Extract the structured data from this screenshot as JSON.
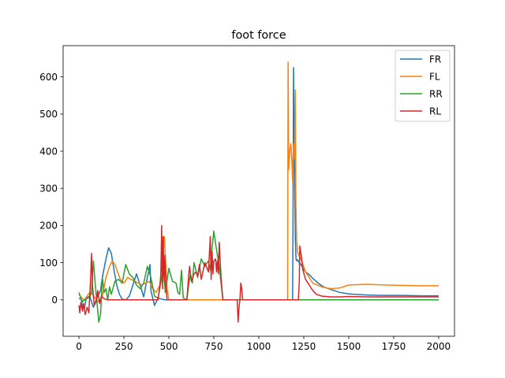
{
  "chart_data": {
    "type": "line",
    "title": "foot force",
    "xlabel": "",
    "ylabel": "",
    "xlim": [
      -88,
      2088
    ],
    "ylim": [
      -98,
      684
    ],
    "x_ticks": [
      0,
      250,
      500,
      750,
      1000,
      1250,
      1500,
      1750,
      2000
    ],
    "y_ticks": [
      0,
      100,
      200,
      300,
      400,
      500,
      600
    ],
    "legend_position": "top-right",
    "series": [
      {
        "name": "FR",
        "color": "#1f77b4",
        "x": [
          0,
          10,
          20,
          30,
          40,
          60,
          70,
          80,
          100,
          120,
          130,
          150,
          165,
          180,
          195,
          210,
          225,
          240,
          260,
          280,
          300,
          320,
          340,
          360,
          380,
          395,
          400,
          410,
          420,
          440,
          460,
          480,
          1100,
          1188,
          1190,
          1193,
          1196,
          1200,
          1203,
          1207,
          1210,
          1215,
          1225,
          1235,
          1245,
          1260,
          1280,
          1300,
          1330,
          1360,
          1400,
          1450,
          1500,
          1600,
          1700,
          1800,
          1900,
          2000
        ],
        "values": [
          2,
          6,
          -18,
          -25,
          5,
          10,
          -5,
          -20,
          5,
          25,
          60,
          110,
          140,
          125,
          80,
          40,
          15,
          2,
          0,
          10,
          40,
          70,
          40,
          8,
          60,
          95,
          25,
          5,
          -15,
          5,
          2,
          0,
          0,
          0,
          200,
          625,
          450,
          290,
          160,
          110,
          105,
          108,
          100,
          95,
          85,
          75,
          68,
          58,
          45,
          35,
          28,
          20,
          16,
          13,
          12,
          12,
          11,
          11
        ]
      },
      {
        "name": "FL",
        "color": "#ff7f0e",
        "x": [
          0,
          15,
          30,
          45,
          60,
          75,
          90,
          110,
          130,
          150,
          170,
          185,
          200,
          215,
          230,
          250,
          270,
          290,
          310,
          330,
          350,
          370,
          390,
          410,
          430,
          450,
          460,
          465,
          470,
          475,
          480,
          490,
          500,
          520,
          1160,
          1163,
          1166,
          1172,
          1178,
          1183,
          1188,
          1193,
          1198,
          1203,
          1206,
          1210,
          1215,
          1222,
          1235,
          1260,
          1300,
          1350,
          1400,
          1450,
          1500,
          1600,
          1700,
          1800,
          1900,
          2000
        ],
        "values": [
          15,
          5,
          0,
          10,
          20,
          15,
          5,
          -5,
          10,
          60,
          90,
          105,
          95,
          75,
          55,
          45,
          60,
          55,
          50,
          45,
          40,
          45,
          50,
          30,
          20,
          40,
          100,
          60,
          150,
          170,
          120,
          30,
          0,
          0,
          0,
          640,
          350,
          400,
          420,
          380,
          320,
          420,
          380,
          565,
          260,
          160,
          130,
          120,
          110,
          75,
          45,
          35,
          30,
          32,
          40,
          42,
          40,
          39,
          38,
          38
        ]
      },
      {
        "name": "RR",
        "color": "#2ca02c",
        "x": [
          0,
          10,
          20,
          30,
          40,
          50,
          60,
          70,
          80,
          90,
          100,
          110,
          120,
          130,
          140,
          150,
          160,
          170,
          180,
          200,
          220,
          240,
          260,
          280,
          300,
          320,
          340,
          360,
          380,
          400,
          420,
          440,
          460,
          470,
          480,
          500,
          520,
          540,
          550,
          560,
          570,
          580,
          600,
          610,
          620,
          630,
          640,
          660,
          680,
          700,
          720,
          730,
          740,
          750,
          760,
          780,
          800,
          1000,
          2000
        ],
        "values": [
          20,
          5,
          -5,
          0,
          2,
          5,
          8,
          20,
          105,
          45,
          -5,
          -60,
          -40,
          60,
          20,
          30,
          0,
          35,
          15,
          50,
          55,
          45,
          95,
          70,
          60,
          40,
          30,
          45,
          90,
          60,
          10,
          5,
          60,
          90,
          20,
          85,
          50,
          45,
          20,
          15,
          80,
          5,
          0,
          40,
          70,
          45,
          100,
          60,
          110,
          90,
          105,
          80,
          140,
          185,
          150,
          90,
          0,
          0,
          0
        ]
      },
      {
        "name": "RL",
        "color": "#d62728",
        "x": [
          0,
          5,
          10,
          20,
          25,
          35,
          45,
          55,
          65,
          70,
          75,
          85,
          95,
          105,
          115,
          125,
          135,
          145,
          160,
          180,
          200,
          300,
          400,
          440,
          455,
          460,
          462,
          465,
          468,
          471,
          474,
          478,
          483,
          490,
          600,
          610,
          615,
          625,
          640,
          650,
          660,
          670,
          680,
          700,
          720,
          730,
          735,
          740,
          745,
          750,
          760,
          765,
          770,
          775,
          780,
          790,
          800,
          810,
          880,
          885,
          890,
          895,
          900,
          905,
          910,
          920,
          1150,
          1210,
          1220,
          1225,
          1228,
          1232,
          1236,
          1245,
          1260,
          1280,
          1300,
          1320,
          1350,
          1400,
          1450,
          1500,
          1600,
          1700,
          1800,
          1900,
          2000
        ],
        "values": [
          -15,
          -35,
          -8,
          -30,
          -10,
          -40,
          -20,
          -35,
          60,
          125,
          40,
          -15,
          -5,
          25,
          -10,
          10,
          5,
          2,
          0,
          0,
          0,
          0,
          0,
          0,
          60,
          200,
          100,
          30,
          170,
          100,
          50,
          120,
          40,
          0,
          0,
          65,
          90,
          50,
          70,
          75,
          65,
          95,
          55,
          100,
          75,
          170,
          55,
          130,
          70,
          105,
          110,
          75,
          105,
          70,
          155,
          60,
          0,
          0,
          0,
          -60,
          -20,
          0,
          45,
          30,
          0,
          0,
          0,
          0,
          0,
          50,
          145,
          130,
          120,
          80,
          55,
          40,
          25,
          15,
          10,
          8,
          8,
          9,
          8,
          8,
          8,
          8,
          8
        ]
      }
    ]
  }
}
